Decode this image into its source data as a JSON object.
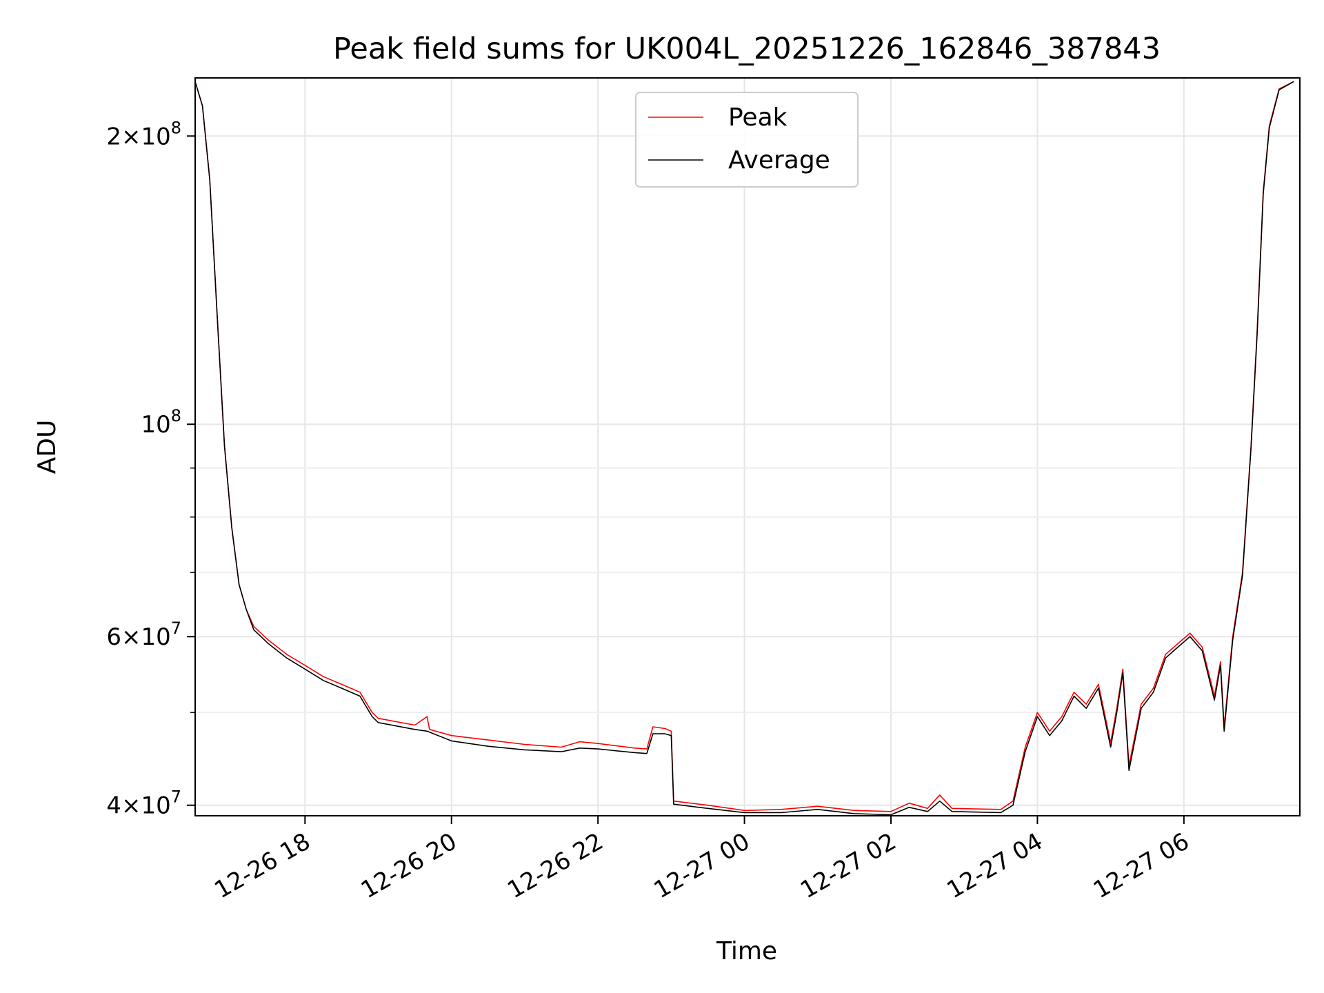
{
  "chart_data": {
    "type": "line",
    "title": "Peak field sums for UK004L_20251226_162846_387843",
    "xlabel": "Time",
    "ylabel": "ADU",
    "y_scale": "log",
    "ylim": [
      39000000,
      230000000
    ],
    "xlim": [
      "2025-12-26 16:30",
      "2025-12-27 07:35"
    ],
    "grid": true,
    "legend_position": "upper center",
    "x_ticks": [
      {
        "t": "2025-12-26 18:00",
        "label": "12-26 18"
      },
      {
        "t": "2025-12-26 20:00",
        "label": "12-26 20"
      },
      {
        "t": "2025-12-26 22:00",
        "label": "12-26 22"
      },
      {
        "t": "2025-12-27 00:00",
        "label": "12-27 00"
      },
      {
        "t": "2025-12-27 02:00",
        "label": "12-27 02"
      },
      {
        "t": "2025-12-27 04:00",
        "label": "12-27 04"
      },
      {
        "t": "2025-12-27 06:00",
        "label": "12-27 06"
      }
    ],
    "y_ticks": [
      {
        "value": 200000000,
        "mantissa": "2",
        "exponent": "8"
      },
      {
        "value": 100000000,
        "mantissa": "",
        "exponent": "8"
      },
      {
        "value": 60000000,
        "mantissa": "6",
        "exponent": "7"
      },
      {
        "value": 40000000,
        "mantissa": "4",
        "exponent": "7"
      }
    ],
    "y_minor_ticks": [
      50000000,
      70000000,
      80000000,
      90000000
    ],
    "series": [
      {
        "name": "Peak",
        "color": "#ff0000",
        "points": [
          [
            "2025-12-26 16:30",
            228000000
          ],
          [
            "2025-12-26 16:36",
            215000000
          ],
          [
            "2025-12-26 16:42",
            180000000
          ],
          [
            "2025-12-26 16:48",
            130000000
          ],
          [
            "2025-12-26 16:54",
            95000000
          ],
          [
            "2025-12-26 17:00",
            78000000
          ],
          [
            "2025-12-26 17:06",
            68000000
          ],
          [
            "2025-12-26 17:12",
            64000000
          ],
          [
            "2025-12-26 17:18",
            61500000
          ],
          [
            "2025-12-26 17:30",
            59500000
          ],
          [
            "2025-12-26 17:45",
            57500000
          ],
          [
            "2025-12-26 18:00",
            56000000
          ],
          [
            "2025-12-26 18:15",
            54500000
          ],
          [
            "2025-12-26 18:30",
            53500000
          ],
          [
            "2025-12-26 18:45",
            52500000
          ],
          [
            "2025-12-26 18:55",
            50000000
          ],
          [
            "2025-12-26 19:00",
            49300000
          ],
          [
            "2025-12-26 19:30",
            48500000
          ],
          [
            "2025-12-26 19:40",
            49500000
          ],
          [
            "2025-12-26 19:42",
            48000000
          ],
          [
            "2025-12-26 20:00",
            47300000
          ],
          [
            "2025-12-26 20:30",
            46800000
          ],
          [
            "2025-12-26 21:00",
            46300000
          ],
          [
            "2025-12-26 21:30",
            46000000
          ],
          [
            "2025-12-26 21:45",
            46600000
          ],
          [
            "2025-12-26 22:00",
            46400000
          ],
          [
            "2025-12-26 22:30",
            45900000
          ],
          [
            "2025-12-26 22:40",
            45800000
          ],
          [
            "2025-12-26 22:45",
            48300000
          ],
          [
            "2025-12-26 22:55",
            48100000
          ],
          [
            "2025-12-26 23:00",
            47800000
          ],
          [
            "2025-12-26 23:02",
            40400000
          ],
          [
            "2025-12-26 23:30",
            40000000
          ],
          [
            "2025-12-27 00:00",
            39500000
          ],
          [
            "2025-12-27 00:30",
            39600000
          ],
          [
            "2025-12-27 01:00",
            39900000
          ],
          [
            "2025-12-27 01:30",
            39500000
          ],
          [
            "2025-12-27 02:00",
            39400000
          ],
          [
            "2025-12-27 02:15",
            40200000
          ],
          [
            "2025-12-27 02:30",
            39700000
          ],
          [
            "2025-12-27 02:40",
            41000000
          ],
          [
            "2025-12-27 02:50",
            39700000
          ],
          [
            "2025-12-27 03:30",
            39600000
          ],
          [
            "2025-12-27 03:40",
            40400000
          ],
          [
            "2025-12-27 03:50",
            46000000
          ],
          [
            "2025-12-27 04:00",
            50000000
          ],
          [
            "2025-12-27 04:10",
            47800000
          ],
          [
            "2025-12-27 04:20",
            49500000
          ],
          [
            "2025-12-27 04:30",
            52500000
          ],
          [
            "2025-12-27 04:40",
            51000000
          ],
          [
            "2025-12-27 04:50",
            53500000
          ],
          [
            "2025-12-27 05:00",
            46500000
          ],
          [
            "2025-12-27 05:05",
            50500000
          ],
          [
            "2025-12-27 05:10",
            55500000
          ],
          [
            "2025-12-27 05:15",
            44000000
          ],
          [
            "2025-12-27 05:25",
            51000000
          ],
          [
            "2025-12-27 05:35",
            53000000
          ],
          [
            "2025-12-27 05:45",
            57500000
          ],
          [
            "2025-12-27 05:55",
            59000000
          ],
          [
            "2025-12-27 06:05",
            60500000
          ],
          [
            "2025-12-27 06:15",
            58500000
          ],
          [
            "2025-12-27 06:25",
            52000000
          ],
          [
            "2025-12-27 06:30",
            56500000
          ],
          [
            "2025-12-27 06:33",
            48300000
          ],
          [
            "2025-12-27 06:40",
            60000000
          ],
          [
            "2025-12-27 06:48",
            70000000
          ],
          [
            "2025-12-27 06:55",
            95000000
          ],
          [
            "2025-12-27 07:00",
            125000000
          ],
          [
            "2025-12-27 07:05",
            175000000
          ],
          [
            "2025-12-27 07:10",
            205000000
          ],
          [
            "2025-12-27 07:18",
            224000000
          ],
          [
            "2025-12-27 07:30",
            228000000
          ]
        ]
      },
      {
        "name": "Average",
        "color": "#000000",
        "points": [
          [
            "2025-12-26 16:30",
            228000000
          ],
          [
            "2025-12-26 16:36",
            215000000
          ],
          [
            "2025-12-26 16:42",
            180000000
          ],
          [
            "2025-12-26 16:48",
            130000000
          ],
          [
            "2025-12-26 16:54",
            95000000
          ],
          [
            "2025-12-26 17:00",
            78000000
          ],
          [
            "2025-12-26 17:06",
            68000000
          ],
          [
            "2025-12-26 17:12",
            64000000
          ],
          [
            "2025-12-26 17:18",
            61000000
          ],
          [
            "2025-12-26 17:30",
            59000000
          ],
          [
            "2025-12-26 17:45",
            57000000
          ],
          [
            "2025-12-26 18:00",
            55500000
          ],
          [
            "2025-12-26 18:15",
            54000000
          ],
          [
            "2025-12-26 18:30",
            53000000
          ],
          [
            "2025-12-26 18:45",
            52000000
          ],
          [
            "2025-12-26 18:55",
            49500000
          ],
          [
            "2025-12-26 19:00",
            48800000
          ],
          [
            "2025-12-26 19:30",
            48000000
          ],
          [
            "2025-12-26 19:40",
            47800000
          ],
          [
            "2025-12-26 20:00",
            46700000
          ],
          [
            "2025-12-26 20:30",
            46100000
          ],
          [
            "2025-12-26 21:00",
            45700000
          ],
          [
            "2025-12-26 21:30",
            45500000
          ],
          [
            "2025-12-26 21:45",
            45900000
          ],
          [
            "2025-12-26 22:00",
            45800000
          ],
          [
            "2025-12-26 22:30",
            45400000
          ],
          [
            "2025-12-26 22:40",
            45300000
          ],
          [
            "2025-12-26 22:45",
            47500000
          ],
          [
            "2025-12-26 22:55",
            47500000
          ],
          [
            "2025-12-26 23:00",
            47300000
          ],
          [
            "2025-12-26 23:02",
            40100000
          ],
          [
            "2025-12-26 23:30",
            39700000
          ],
          [
            "2025-12-27 00:00",
            39300000
          ],
          [
            "2025-12-27 00:30",
            39300000
          ],
          [
            "2025-12-27 01:00",
            39600000
          ],
          [
            "2025-12-27 01:30",
            39200000
          ],
          [
            "2025-12-27 02:00",
            39100000
          ],
          [
            "2025-12-27 02:15",
            39800000
          ],
          [
            "2025-12-27 02:30",
            39400000
          ],
          [
            "2025-12-27 02:40",
            40400000
          ],
          [
            "2025-12-27 02:50",
            39400000
          ],
          [
            "2025-12-27 03:30",
            39300000
          ],
          [
            "2025-12-27 03:40",
            40000000
          ],
          [
            "2025-12-27 03:50",
            45500000
          ],
          [
            "2025-12-27 04:00",
            49500000
          ],
          [
            "2025-12-27 04:10",
            47300000
          ],
          [
            "2025-12-27 04:20",
            49000000
          ],
          [
            "2025-12-27 04:30",
            52000000
          ],
          [
            "2025-12-27 04:40",
            50500000
          ],
          [
            "2025-12-27 04:50",
            53000000
          ],
          [
            "2025-12-27 05:00",
            46000000
          ],
          [
            "2025-12-27 05:05",
            50000000
          ],
          [
            "2025-12-27 05:10",
            55000000
          ],
          [
            "2025-12-27 05:15",
            43500000
          ],
          [
            "2025-12-27 05:25",
            50500000
          ],
          [
            "2025-12-27 05:35",
            52500000
          ],
          [
            "2025-12-27 05:45",
            57000000
          ],
          [
            "2025-12-27 05:55",
            58500000
          ],
          [
            "2025-12-27 06:05",
            60000000
          ],
          [
            "2025-12-27 06:15",
            58000000
          ],
          [
            "2025-12-27 06:25",
            51500000
          ],
          [
            "2025-12-27 06:30",
            56000000
          ],
          [
            "2025-12-27 06:33",
            47800000
          ],
          [
            "2025-12-27 06:40",
            59500000
          ],
          [
            "2025-12-27 06:48",
            69500000
          ],
          [
            "2025-12-27 06:55",
            94500000
          ],
          [
            "2025-12-27 07:00",
            124000000
          ],
          [
            "2025-12-27 07:05",
            174000000
          ],
          [
            "2025-12-27 07:10",
            204000000
          ],
          [
            "2025-12-27 07:18",
            223500000
          ],
          [
            "2025-12-27 07:30",
            228000000
          ]
        ]
      }
    ]
  }
}
